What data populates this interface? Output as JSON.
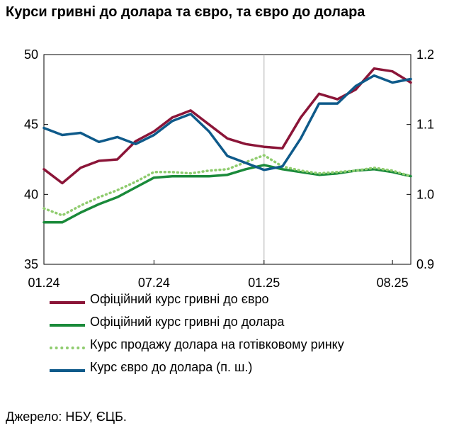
{
  "title": "Курси гривні до долара та євро, та євро до долара",
  "source": "Джерело: НБУ, ЄЦБ.",
  "colors": {
    "eur_uah": "#8b1538",
    "usd_uah": "#1a8a3a",
    "cash_usd": "#8fcc6e",
    "eur_usd": "#0e5a8a"
  },
  "chart_data": {
    "type": "line",
    "x_ticks": [
      "01.24",
      "07.24",
      "01.25",
      "08.25"
    ],
    "y_left": {
      "ticks": [
        "35",
        "40",
        "45",
        "50"
      ],
      "range": [
        35,
        50
      ]
    },
    "y_right": {
      "ticks": [
        "0.9",
        "1.0",
        "1.1",
        "1.2"
      ],
      "range": [
        0.9,
        1.2
      ]
    },
    "x_range": [
      "2024-01",
      "2025-09"
    ],
    "vertical_line_at": "2025-01",
    "series": [
      {
        "name": "Офіційний курс гривні до євро",
        "axis": "left",
        "style": "solid",
        "x": [
          "2024-01",
          "2024-02",
          "2024-03",
          "2024-04",
          "2024-05",
          "2024-06",
          "2024-07",
          "2024-08",
          "2024-09",
          "2024-10",
          "2024-11",
          "2024-12",
          "2025-01",
          "2025-02",
          "2025-03",
          "2025-04",
          "2025-05",
          "2025-06",
          "2025-07",
          "2025-08",
          "2025-09"
        ],
        "values": [
          41.8,
          40.8,
          41.9,
          42.4,
          42.5,
          43.8,
          44.5,
          45.5,
          46.0,
          45.0,
          44.0,
          43.6,
          43.4,
          43.3,
          45.5,
          47.2,
          46.8,
          47.5,
          49.0,
          48.8,
          48.0
        ]
      },
      {
        "name": "Офіційний курс гривні до долара",
        "axis": "left",
        "style": "solid",
        "x": [
          "2024-01",
          "2024-02",
          "2024-03",
          "2024-04",
          "2024-05",
          "2024-06",
          "2024-07",
          "2024-08",
          "2024-09",
          "2024-10",
          "2024-11",
          "2024-12",
          "2025-01",
          "2025-02",
          "2025-03",
          "2025-04",
          "2025-05",
          "2025-06",
          "2025-07",
          "2025-08",
          "2025-09"
        ],
        "values": [
          38.0,
          38.0,
          38.7,
          39.3,
          39.8,
          40.5,
          41.2,
          41.3,
          41.3,
          41.3,
          41.4,
          41.8,
          42.1,
          41.8,
          41.6,
          41.4,
          41.5,
          41.7,
          41.8,
          41.6,
          41.3
        ]
      },
      {
        "name": "Курс продажу долара на готівковому ринку",
        "axis": "left",
        "style": "dotted",
        "x": [
          "2024-01",
          "2024-02",
          "2024-03",
          "2024-04",
          "2024-05",
          "2024-06",
          "2024-07",
          "2024-08",
          "2024-09",
          "2024-10",
          "2024-11",
          "2024-12",
          "2025-01",
          "2025-02",
          "2025-03",
          "2025-04",
          "2025-05",
          "2025-06",
          "2025-07",
          "2025-08",
          "2025-09"
        ],
        "values": [
          39.0,
          38.5,
          39.2,
          39.8,
          40.3,
          40.9,
          41.6,
          41.6,
          41.5,
          41.7,
          41.8,
          42.3,
          42.8,
          42.0,
          41.7,
          41.5,
          41.6,
          41.7,
          41.9,
          41.7,
          41.3
        ]
      },
      {
        "name": "Курс євро до долара (п. ш.)",
        "axis": "right",
        "style": "solid",
        "x": [
          "2024-01",
          "2024-02",
          "2024-03",
          "2024-04",
          "2024-05",
          "2024-06",
          "2024-07",
          "2024-08",
          "2024-09",
          "2024-10",
          "2024-11",
          "2024-12",
          "2025-01",
          "2025-02",
          "2025-03",
          "2025-04",
          "2025-05",
          "2025-06",
          "2025-07",
          "2025-08",
          "2025-09"
        ],
        "values": [
          1.095,
          1.085,
          1.088,
          1.075,
          1.082,
          1.072,
          1.085,
          1.105,
          1.115,
          1.09,
          1.055,
          1.045,
          1.035,
          1.04,
          1.08,
          1.13,
          1.13,
          1.155,
          1.17,
          1.16,
          1.165
        ]
      }
    ]
  }
}
